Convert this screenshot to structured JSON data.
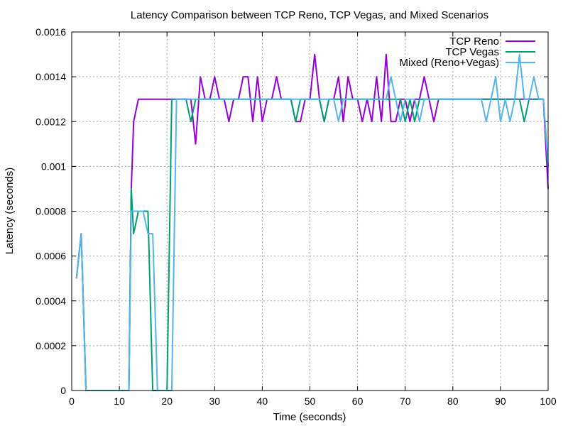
{
  "chart_data": {
    "type": "line",
    "title": "Latency Comparison between TCP Reno, TCP Vegas, and Mixed Scenarios",
    "xlabel": "Time (seconds)",
    "ylabel": "Latency (seconds)",
    "xlim": [
      0,
      100
    ],
    "ylim": [
      0,
      0.0016
    ],
    "x_ticks": [
      "0",
      "10",
      "20",
      "30",
      "40",
      "50",
      "60",
      "70",
      "80",
      "90",
      "100"
    ],
    "y_ticks": [
      "0",
      "0.0002",
      "0.0004",
      "0.0006",
      "0.0008",
      "0.001",
      "0.0012",
      "0.0014",
      "0.0016"
    ],
    "grid": true,
    "legend_position": "top-right",
    "series": [
      {
        "name": "TCP Reno",
        "color": "#9400d3",
        "x": [
          1,
          2,
          3,
          4,
          5,
          6,
          7,
          8,
          9,
          10,
          11,
          12,
          12.5,
          13,
          14,
          15,
          16,
          17,
          18,
          19,
          20,
          21,
          22,
          23,
          24,
          25,
          26,
          27,
          28,
          29,
          30,
          31,
          32,
          33,
          34,
          35,
          36,
          37,
          38,
          39,
          40,
          41,
          42,
          43,
          44,
          45,
          46,
          47,
          48,
          49,
          50,
          51,
          52,
          53,
          54,
          55,
          56,
          57,
          58,
          59,
          60,
          61,
          62,
          63,
          64,
          65,
          66,
          67,
          68,
          69,
          70,
          71,
          72,
          73,
          74,
          75,
          76,
          77,
          78,
          79,
          80,
          81,
          82,
          83,
          84,
          85,
          86,
          87,
          88,
          89,
          90,
          91,
          92,
          93,
          94,
          95,
          96,
          97,
          98,
          99,
          100
        ],
        "y": [
          0.0005,
          0.0007,
          0,
          0,
          0,
          0,
          0,
          0,
          0,
          0,
          0,
          0,
          0.0009,
          0.0012,
          0.0013,
          0.0013,
          0.0013,
          0.0013,
          0.0013,
          0.0013,
          0.0013,
          0.0013,
          0.0013,
          0.0013,
          0.0013,
          0.0013,
          0.0011,
          0.0014,
          0.0013,
          0.0013,
          0.0014,
          0.0013,
          0.0013,
          0.0012,
          0.0013,
          0.0013,
          0.0014,
          0.0014,
          0.0012,
          0.0014,
          0.0012,
          0.0013,
          0.0013,
          0.0014,
          0.0013,
          0.0013,
          0.0013,
          0.0012,
          0.0012,
          0.0013,
          0.0013,
          0.0015,
          0.0013,
          0.0012,
          0.0013,
          0.0013,
          0.0014,
          0.0012,
          0.0014,
          0.0013,
          0.0013,
          0.0012,
          0.0013,
          0.0012,
          0.0014,
          0.0012,
          0.0015,
          0.0012,
          0.0012,
          0.0013,
          0.0013,
          0.0012,
          0.0013,
          0.0013,
          0.0014,
          0.0013,
          0.0012,
          0.0013,
          0.0013,
          0.0013,
          0.0013,
          0.0013,
          0.0013,
          0.0013,
          0.0013,
          0.0013,
          0.0013,
          0.0013,
          0.0013,
          0.0013,
          0.0013,
          0.0013,
          0.0013,
          0.0013,
          0.0013,
          0.0013,
          0.0013,
          0.0013,
          0.0013,
          0.0013,
          0.0009
        ]
      },
      {
        "name": "TCP Vegas",
        "color": "#009e73",
        "x": [
          1,
          2,
          3,
          4,
          5,
          6,
          7,
          8,
          9,
          10,
          11,
          12,
          12.5,
          13,
          14,
          15,
          16,
          17,
          18,
          19,
          20,
          21,
          22,
          23,
          24,
          25,
          26,
          27,
          28,
          29,
          30,
          31,
          32,
          33,
          34,
          35,
          36,
          37,
          38,
          39,
          40,
          41,
          42,
          43,
          44,
          45,
          46,
          47,
          48,
          49,
          50,
          51,
          52,
          53,
          54,
          55,
          56,
          57,
          58,
          59,
          60,
          61,
          62,
          63,
          64,
          65,
          66,
          67,
          68,
          69,
          70,
          71,
          72,
          73,
          74,
          75,
          76,
          77,
          78,
          79,
          80,
          81,
          82,
          83,
          84,
          85,
          86,
          87,
          88,
          89,
          90,
          91,
          92,
          93,
          94,
          95,
          96,
          97,
          98,
          99,
          100
        ],
        "y": [
          0.0005,
          0.0007,
          0,
          0,
          0,
          0,
          0,
          0,
          0,
          0,
          0,
          0,
          0.0009,
          0.0007,
          0.0008,
          0.0008,
          0.0008,
          0,
          0,
          0,
          0,
          0.0013,
          0.0013,
          0.0013,
          0.0013,
          0.0012,
          0.0013,
          0.0013,
          0.0013,
          0.0013,
          0.0013,
          0.0013,
          0.0013,
          0.0013,
          0.0013,
          0.0013,
          0.0013,
          0.0013,
          0.0013,
          0.0013,
          0.0013,
          0.0013,
          0.0013,
          0.0013,
          0.0013,
          0.0013,
          0.0013,
          0.0012,
          0.0013,
          0.0013,
          0.0013,
          0.0013,
          0.0013,
          0.0012,
          0.0013,
          0.0013,
          0.0013,
          0.0013,
          0.0013,
          0.0013,
          0.0013,
          0.0013,
          0.0013,
          0.0013,
          0.0013,
          0.0013,
          0.0013,
          0.0013,
          0.0013,
          0.0013,
          0.0012,
          0.0013,
          0.0012,
          0.0013,
          0.0013,
          0.0013,
          0.0013,
          0.0013,
          0.0013,
          0.0013,
          0.0013,
          0.0013,
          0.0013,
          0.0013,
          0.0013,
          0.0013,
          0.0013,
          0.0013,
          0.0013,
          0.0013,
          0.0013,
          0.0013,
          0.0013,
          0.0013,
          0.0013,
          0.0012,
          0.0013,
          0.0013,
          0.0013,
          0.0013,
          0.001
        ]
      },
      {
        "name": "Mixed (Reno+Vegas)",
        "color": "#56b4e9",
        "x": [
          1,
          2,
          3,
          4,
          5,
          6,
          7,
          8,
          9,
          10,
          11,
          12,
          12.5,
          13,
          14,
          15,
          16,
          17,
          18,
          19,
          20,
          21,
          22,
          23,
          24,
          25,
          26,
          27,
          28,
          29,
          30,
          31,
          32,
          33,
          34,
          35,
          36,
          37,
          38,
          39,
          40,
          41,
          42,
          43,
          44,
          45,
          46,
          47,
          48,
          49,
          50,
          51,
          52,
          53,
          54,
          55,
          56,
          57,
          58,
          59,
          60,
          61,
          62,
          63,
          64,
          65,
          66,
          67,
          68,
          69,
          70,
          71,
          72,
          73,
          74,
          75,
          76,
          77,
          78,
          79,
          80,
          81,
          82,
          83,
          84,
          85,
          86,
          87,
          88,
          89,
          90,
          91,
          92,
          93,
          94,
          95,
          96,
          97,
          98,
          99,
          100
        ],
        "y": [
          0.0005,
          0.0007,
          0,
          0,
          0,
          0,
          0,
          0,
          0,
          0,
          0,
          0,
          0.0008,
          0.0008,
          0.0008,
          0.0008,
          0.0007,
          0.0007,
          0,
          0,
          0,
          0,
          0.0013,
          0.0013,
          0.0013,
          0.0013,
          0.0013,
          0.0013,
          0.0013,
          0.0013,
          0.0013,
          0.0013,
          0.0013,
          0.0013,
          0.0013,
          0.0013,
          0.0013,
          0.0013,
          0.0013,
          0.0013,
          0.0013,
          0.0013,
          0.0013,
          0.0013,
          0.0013,
          0.0013,
          0.0013,
          0.0013,
          0.0013,
          0.0013,
          0.0013,
          0.0013,
          0.0013,
          0.0013,
          0.0013,
          0.0013,
          0.0012,
          0.0013,
          0.0013,
          0.0013,
          0.0013,
          0.0013,
          0.0013,
          0.0013,
          0.0013,
          0.0013,
          0.0013,
          0.0014,
          0.0013,
          0.0012,
          0.0013,
          0.0013,
          0.0013,
          0.0012,
          0.0013,
          0.0013,
          0.0013,
          0.0013,
          0.0013,
          0.0013,
          0.0013,
          0.0013,
          0.0013,
          0.0013,
          0.0013,
          0.0013,
          0.0013,
          0.0012,
          0.0013,
          0.0014,
          0.0012,
          0.0013,
          0.0012,
          0.0013,
          0.0015,
          0.0013,
          0.0013,
          0.0014,
          0.0013,
          0.0013,
          0.001
        ]
      }
    ]
  }
}
